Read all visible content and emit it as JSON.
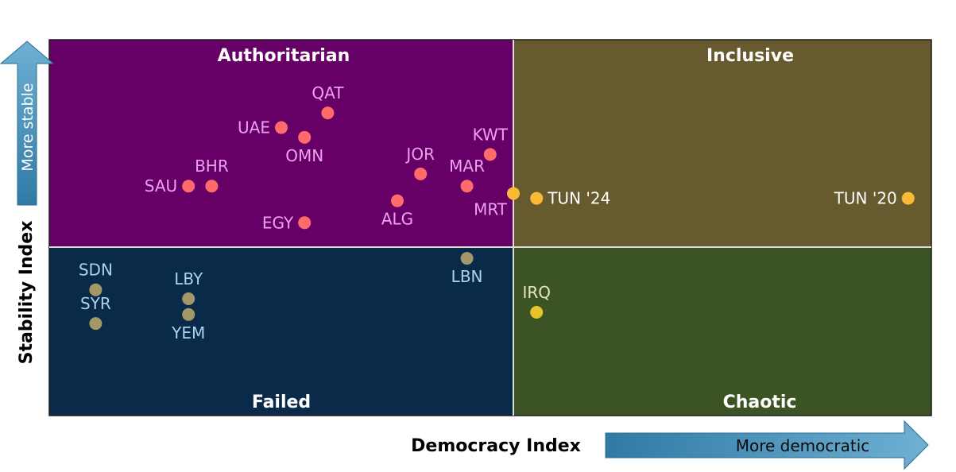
{
  "chart_data": {
    "type": "scatter",
    "title": "",
    "xlabel": "Democracy Index",
    "ylabel": "Stability Index",
    "x_arrow_label": "More democratic",
    "y_arrow_label": "More stable",
    "xlim": [
      0,
      19
    ],
    "ylim": [
      0,
      16
    ],
    "x_divider": 10,
    "y_divider": 7.5,
    "grid": false,
    "legend": "none",
    "quadrants": [
      {
        "key": "authoritarian",
        "label": "Authoritarian",
        "color": "#660066"
      },
      {
        "key": "inclusive",
        "label": "Inclusive",
        "color": "#665a2e"
      },
      {
        "key": "failed",
        "label": "Failed",
        "color": "#0a2a4a"
      },
      {
        "key": "chaotic",
        "label": "Chaotic",
        "color": "#3c5424"
      }
    ],
    "colors": {
      "authoritarian_point": "#ff6b6b",
      "authoritarian_label": "#f0a0f0",
      "failed_point": "#a39968",
      "failed_label": "#a8d4ee",
      "orange_point": "#fbba35",
      "inclusive_label": "#ffffff",
      "chaotic_point": "#e8c22a",
      "chaotic_label": "#e6e6c8",
      "arrow_blue": "#3e86ad"
    },
    "points": [
      {
        "label": "QAT",
        "x": 6.0,
        "y": 13.0,
        "group": "authoritarian",
        "label_pos": "above"
      },
      {
        "label": "UAE",
        "x": 5.0,
        "y": 12.4,
        "group": "authoritarian",
        "label_pos": "left"
      },
      {
        "label": "OMN",
        "x": 5.5,
        "y": 12.0,
        "group": "authoritarian",
        "label_pos": "below"
      },
      {
        "label": "KWT",
        "x": 9.5,
        "y": 11.3,
        "group": "authoritarian",
        "label_pos": "above"
      },
      {
        "label": "JOR",
        "x": 8.0,
        "y": 10.5,
        "group": "authoritarian",
        "label_pos": "above"
      },
      {
        "label": "BHR",
        "x": 3.5,
        "y": 10.0,
        "group": "authoritarian",
        "label_pos": "above"
      },
      {
        "label": "SAU",
        "x": 3.0,
        "y": 10.0,
        "group": "authoritarian",
        "label_pos": "left"
      },
      {
        "label": "MAR",
        "x": 9.0,
        "y": 10.0,
        "group": "authoritarian",
        "label_pos": "above"
      },
      {
        "label": "MRT",
        "x": 10.0,
        "y": 9.7,
        "group": "orange",
        "label_pos": "below-left"
      },
      {
        "label": "ALG",
        "x": 7.5,
        "y": 9.4,
        "group": "authoritarian",
        "label_pos": "below"
      },
      {
        "label": "EGY",
        "x": 5.5,
        "y": 8.5,
        "group": "authoritarian",
        "label_pos": "left"
      },
      {
        "label": "TUN '24",
        "x": 10.5,
        "y": 9.5,
        "group": "orange",
        "label_pos": "right"
      },
      {
        "label": "TUN '20",
        "x": 18.5,
        "y": 9.5,
        "group": "orange",
        "label_pos": "left"
      },
      {
        "label": "LBN",
        "x": 9.0,
        "y": 7.0,
        "group": "failed",
        "label_pos": "below"
      },
      {
        "label": "SDN",
        "x": 1.0,
        "y": 5.6,
        "group": "failed",
        "label_pos": "above"
      },
      {
        "label": "LBY",
        "x": 3.0,
        "y": 5.2,
        "group": "failed",
        "label_pos": "above"
      },
      {
        "label": "YEM",
        "x": 3.0,
        "y": 4.5,
        "group": "failed",
        "label_pos": "below"
      },
      {
        "label": "SYR",
        "x": 1.0,
        "y": 4.1,
        "group": "failed",
        "label_pos": "above"
      },
      {
        "label": "IRQ",
        "x": 10.5,
        "y": 4.6,
        "group": "chaotic",
        "label_pos": "above"
      }
    ]
  }
}
